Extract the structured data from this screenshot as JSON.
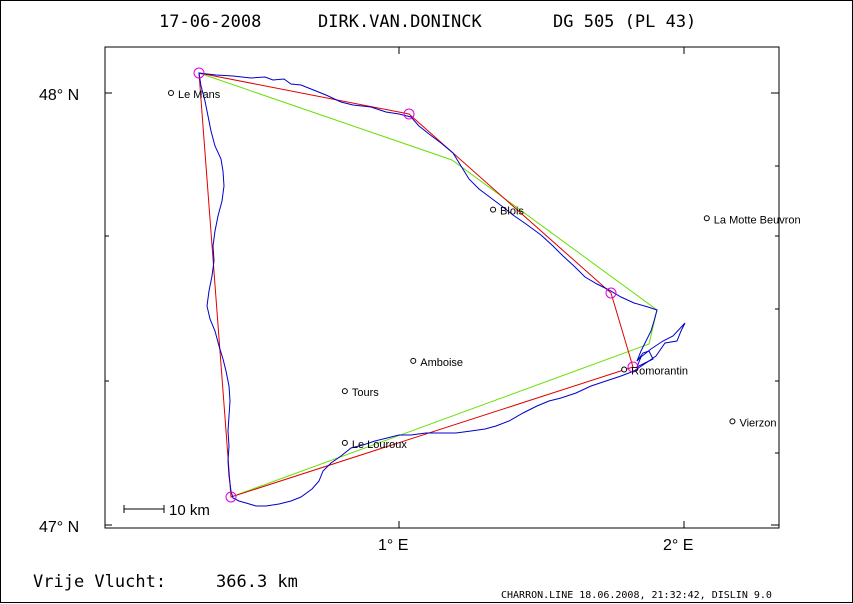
{
  "header": {
    "date": "17-06-2008",
    "pilot": "DIRK.VAN.DONINCK",
    "glider": "DG 505 (PL 43)"
  },
  "axes": {
    "lat_labels": [
      "48° N",
      "47° N"
    ],
    "lon_labels": [
      "1° E",
      "2° E"
    ]
  },
  "scale_bar": {
    "label": "10 km"
  },
  "footer": {
    "distance_label": "Vrije Vlucht:",
    "distance_value": "366.3 km",
    "credits": "CHARRON.LINE 18.06.2008, 21:32:42, DISLIN 9.0"
  },
  "cities": [
    {
      "name": "Le Mans",
      "lon": 0.2,
      "lat": 48.0
    },
    {
      "name": "Blois",
      "lon": 1.33,
      "lat": 47.73
    },
    {
      "name": "La Motte Beuvron",
      "lon": 2.08,
      "lat": 47.71
    },
    {
      "name": "Amboise",
      "lon": 1.05,
      "lat": 47.38
    },
    {
      "name": "Tours",
      "lon": 0.81,
      "lat": 47.31
    },
    {
      "name": "Romorantin",
      "lon": 1.79,
      "lat": 47.36
    },
    {
      "name": "Vierzon",
      "lon": 2.17,
      "lat": 47.24
    },
    {
      "name": "Le Louroux",
      "lon": 0.81,
      "lat": 47.19
    }
  ],
  "colors": {
    "task_line": "#e00000",
    "optimized_line": "#66e000",
    "track": "#0000cc",
    "turnpoint": "#e000e0"
  }
}
